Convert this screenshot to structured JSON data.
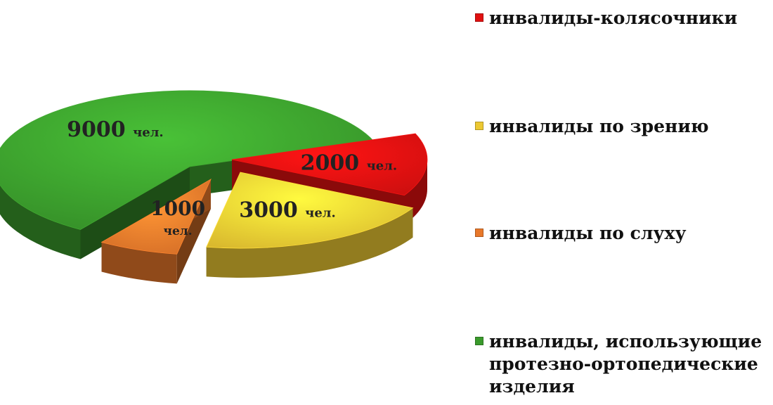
{
  "chart_data": {
    "type": "pie",
    "title": "",
    "unit": "чел.",
    "slices": [
      {
        "label": "инвалиды-колясочники",
        "value": 2000,
        "value_text": "2000",
        "unit_text": "чел.",
        "color": "#e01010"
      },
      {
        "label": "инвалиды по зрению",
        "value": 3000,
        "value_text": "3000",
        "unit_text": "чел.",
        "color": "#ecc832"
      },
      {
        "label": "инвалиды по слуху",
        "value": 1000,
        "value_text": "1000",
        "unit_text": "чел.",
        "color": "#e8782a"
      },
      {
        "label": "инвалиды, использующие протезно-ортопедические изделия",
        "value": 9000,
        "value_text": "9000",
        "unit_text": "чел.",
        "color": "#3a9a2c"
      }
    ],
    "legend_position": "right",
    "style": "3d exploded pie"
  }
}
